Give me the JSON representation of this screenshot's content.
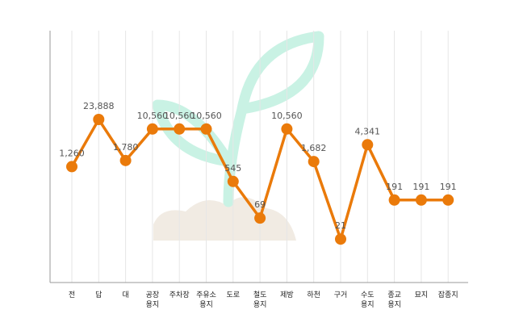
{
  "chart_data": {
    "type": "line",
    "categories": [
      [
        "전"
      ],
      [
        "답"
      ],
      [
        "대"
      ],
      [
        "공장",
        "용지"
      ],
      [
        "주차장"
      ],
      [
        "주유소",
        "용지"
      ],
      [
        "도로"
      ],
      [
        "철도",
        "용지"
      ],
      [
        "제방"
      ],
      [
        "하천"
      ],
      [
        "구거"
      ],
      [
        "수도",
        "용지"
      ],
      [
        "종교",
        "용지"
      ],
      [
        "묘지"
      ],
      [
        "잡종지"
      ]
    ],
    "series": [
      {
        "values": [
          1260,
          23888,
          1780,
          10560,
          10560,
          10560,
          545,
          69,
          10560,
          1682,
          21,
          4341,
          191,
          191,
          191
        ],
        "labels": [
          "1,260",
          "23,888",
          "1,780",
          "10,560",
          "10,560",
          "10,560",
          "545",
          "69",
          "10,560",
          "1,682",
          "21",
          "4,341",
          "191",
          "191",
          "191"
        ]
      }
    ],
    "yscale": "log",
    "ylim": [
      10,
      40000
    ],
    "grid": "vertical",
    "legend": "none",
    "colors": {
      "line": "#ea7a0a",
      "grid": "#e6e6e6",
      "axis": "#999999",
      "plant": "#c9f2e4",
      "cloud": "#f1ebe3"
    }
  }
}
